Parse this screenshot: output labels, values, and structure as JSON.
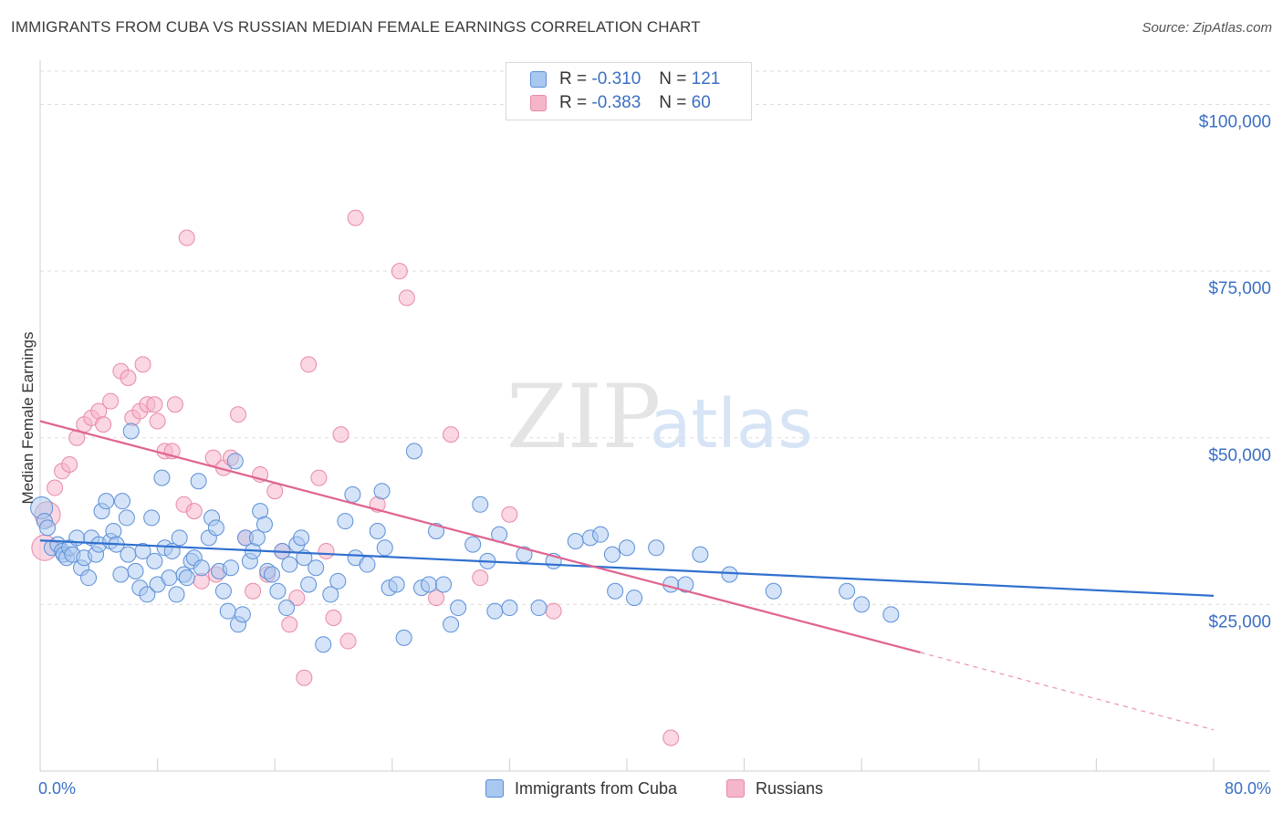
{
  "header": {
    "title": "IMMIGRANTS FROM CUBA VS RUSSIAN MEDIAN FEMALE EARNINGS CORRELATION CHART",
    "source": "Source: ZipAtlas.com"
  },
  "watermark": {
    "part1": "ZIP",
    "part2": "atlas"
  },
  "legend_top": {
    "rows": [
      {
        "r_label": "R =",
        "r_value": "-0.310",
        "n_label": "N =",
        "n_value": "121"
      },
      {
        "r_label": "R =",
        "r_value": "-0.383",
        "n_label": "N =",
        "n_value": "60"
      }
    ]
  },
  "colors": {
    "cuba_fill": "#a9c8f0",
    "cuba_stroke": "#5b8fd8",
    "cuba_line": "#2f6fcf",
    "russia_fill": "#f5b6ca",
    "russia_stroke": "#e889a8",
    "russia_line": "#e06490",
    "axis_label": "#3b6fc4",
    "grid": "#dddddd"
  },
  "chart_data": {
    "type": "scatter",
    "title": "IMMIGRANTS FROM CUBA VS RUSSIAN MEDIAN FEMALE EARNINGS CORRELATION CHART",
    "xlabel": "",
    "ylabel": "Median Female Earnings",
    "xlim": [
      0,
      80
    ],
    "ylim": [
      0,
      105000
    ],
    "x_tick_labels": [
      "0.0%",
      "80.0%"
    ],
    "y_ticks": [
      25000,
      50000,
      75000,
      100000
    ],
    "y_tick_labels": [
      "$25,000",
      "$50,000",
      "$75,000",
      "$100,000"
    ],
    "grid": true,
    "legend_position": "bottom",
    "series": [
      {
        "name": "Immigrants from Cuba",
        "r": -0.31,
        "n": 121,
        "trend": {
          "x0": 0,
          "y0": 34600,
          "x1": 80,
          "y1": 26300
        },
        "points": [
          [
            0.1,
            39500
          ],
          [
            0.3,
            37500
          ],
          [
            0.5,
            36500
          ],
          [
            0.8,
            33500
          ],
          [
            1.2,
            34000
          ],
          [
            1.5,
            33000
          ],
          [
            1.6,
            32500
          ],
          [
            1.8,
            32000
          ],
          [
            2.0,
            33500
          ],
          [
            2.2,
            32500
          ],
          [
            2.5,
            35000
          ],
          [
            2.8,
            30500
          ],
          [
            3.0,
            32000
          ],
          [
            3.3,
            29000
          ],
          [
            3.5,
            35000
          ],
          [
            3.8,
            32500
          ],
          [
            4.0,
            34000
          ],
          [
            4.2,
            39000
          ],
          [
            4.5,
            40500
          ],
          [
            4.8,
            34500
          ],
          [
            5.0,
            36000
          ],
          [
            5.2,
            34000
          ],
          [
            5.5,
            29500
          ],
          [
            5.6,
            40500
          ],
          [
            5.9,
            38000
          ],
          [
            6.0,
            32500
          ],
          [
            6.2,
            51000
          ],
          [
            6.5,
            30000
          ],
          [
            6.8,
            27500
          ],
          [
            7.0,
            33000
          ],
          [
            7.3,
            26500
          ],
          [
            7.6,
            38000
          ],
          [
            7.8,
            31500
          ],
          [
            8.0,
            28000
          ],
          [
            8.3,
            44000
          ],
          [
            8.5,
            33500
          ],
          [
            8.8,
            29000
          ],
          [
            9.0,
            33000
          ],
          [
            9.3,
            26500
          ],
          [
            9.5,
            35000
          ],
          [
            9.8,
            29500
          ],
          [
            10.0,
            29000
          ],
          [
            10.3,
            31500
          ],
          [
            10.5,
            32000
          ],
          [
            10.8,
            43500
          ],
          [
            11.0,
            30500
          ],
          [
            11.5,
            35000
          ],
          [
            11.7,
            38000
          ],
          [
            12.0,
            36500
          ],
          [
            12.2,
            30000
          ],
          [
            12.5,
            27000
          ],
          [
            12.8,
            24000
          ],
          [
            13.0,
            30500
          ],
          [
            13.3,
            46500
          ],
          [
            13.5,
            22000
          ],
          [
            13.8,
            23500
          ],
          [
            14.0,
            35000
          ],
          [
            14.3,
            31500
          ],
          [
            14.5,
            33000
          ],
          [
            14.8,
            35000
          ],
          [
            15.0,
            39000
          ],
          [
            15.3,
            37000
          ],
          [
            15.5,
            30000
          ],
          [
            15.8,
            29500
          ],
          [
            16.2,
            27000
          ],
          [
            16.5,
            33000
          ],
          [
            16.8,
            24500
          ],
          [
            17.0,
            31000
          ],
          [
            17.5,
            34000
          ],
          [
            17.8,
            35000
          ],
          [
            18.0,
            32000
          ],
          [
            18.3,
            28000
          ],
          [
            18.8,
            30500
          ],
          [
            19.3,
            19000
          ],
          [
            19.8,
            26500
          ],
          [
            20.3,
            28500
          ],
          [
            20.8,
            37500
          ],
          [
            21.3,
            41500
          ],
          [
            21.5,
            32000
          ],
          [
            22.3,
            31000
          ],
          [
            23.0,
            36000
          ],
          [
            23.3,
            42000
          ],
          [
            23.5,
            33500
          ],
          [
            23.8,
            27500
          ],
          [
            24.3,
            28000
          ],
          [
            24.8,
            20000
          ],
          [
            25.5,
            48000
          ],
          [
            26.0,
            27500
          ],
          [
            26.5,
            28000
          ],
          [
            27.0,
            36000
          ],
          [
            27.5,
            28000
          ],
          [
            28.0,
            22000
          ],
          [
            28.5,
            24500
          ],
          [
            29.5,
            34000
          ],
          [
            30.0,
            40000
          ],
          [
            30.5,
            31500
          ],
          [
            31.0,
            24000
          ],
          [
            31.3,
            35500
          ],
          [
            32.0,
            24500
          ],
          [
            33.0,
            32500
          ],
          [
            34.0,
            24500
          ],
          [
            35.0,
            31500
          ],
          [
            36.5,
            34500
          ],
          [
            37.5,
            35000
          ],
          [
            38.2,
            35500
          ],
          [
            39.0,
            32500
          ],
          [
            39.2,
            27000
          ],
          [
            40.0,
            33500
          ],
          [
            40.5,
            26000
          ],
          [
            42.0,
            33500
          ],
          [
            43.0,
            28000
          ],
          [
            44.0,
            28000
          ],
          [
            45.0,
            32500
          ],
          [
            47.0,
            29500
          ],
          [
            50.0,
            27000
          ],
          [
            55.0,
            27000
          ],
          [
            56.0,
            25000
          ],
          [
            58.0,
            23500
          ]
        ]
      },
      {
        "name": "Russians",
        "r": -0.383,
        "n": 60,
        "trend": {
          "x0": 0,
          "y0": 52500,
          "x1": 60,
          "y1": 17800,
          "dash_to_x": 80,
          "dash_to_y": 6200
        },
        "points": [
          [
            0.3,
            33500
          ],
          [
            0.5,
            38500
          ],
          [
            1.0,
            42500
          ],
          [
            1.5,
            45000
          ],
          [
            2.0,
            46000
          ],
          [
            2.5,
            50000
          ],
          [
            3.0,
            52000
          ],
          [
            3.5,
            53000
          ],
          [
            4.0,
            54000
          ],
          [
            4.3,
            52000
          ],
          [
            4.8,
            55500
          ],
          [
            5.5,
            60000
          ],
          [
            6.0,
            59000
          ],
          [
            6.3,
            53000
          ],
          [
            6.8,
            54000
          ],
          [
            7.0,
            61000
          ],
          [
            7.3,
            55000
          ],
          [
            7.8,
            55000
          ],
          [
            8.0,
            52500
          ],
          [
            8.5,
            48000
          ],
          [
            9.0,
            48000
          ],
          [
            9.2,
            55000
          ],
          [
            9.8,
            40000
          ],
          [
            10.0,
            80000
          ],
          [
            10.5,
            39000
          ],
          [
            11.0,
            28500
          ],
          [
            11.8,
            47000
          ],
          [
            12.0,
            29500
          ],
          [
            12.5,
            45500
          ],
          [
            13.0,
            47000
          ],
          [
            13.5,
            53500
          ],
          [
            14.0,
            35000
          ],
          [
            14.5,
            27000
          ],
          [
            15.0,
            44500
          ],
          [
            15.5,
            29500
          ],
          [
            16.0,
            42000
          ],
          [
            16.5,
            33000
          ],
          [
            17.0,
            22000
          ],
          [
            17.5,
            26000
          ],
          [
            18.0,
            14000
          ],
          [
            18.3,
            61000
          ],
          [
            19.0,
            44000
          ],
          [
            19.5,
            33000
          ],
          [
            20.0,
            23000
          ],
          [
            20.5,
            50500
          ],
          [
            21.0,
            19500
          ],
          [
            21.5,
            83000
          ],
          [
            23.0,
            40000
          ],
          [
            24.5,
            75000
          ],
          [
            25.0,
            71000
          ],
          [
            27.0,
            26000
          ],
          [
            28.0,
            50500
          ],
          [
            30.0,
            29000
          ],
          [
            32.0,
            38500
          ],
          [
            35.0,
            24000
          ],
          [
            43.0,
            5000
          ]
        ]
      }
    ]
  },
  "legend_bottom": {
    "items": [
      {
        "label": "Immigrants from Cuba"
      },
      {
        "label": "Russians"
      }
    ]
  }
}
